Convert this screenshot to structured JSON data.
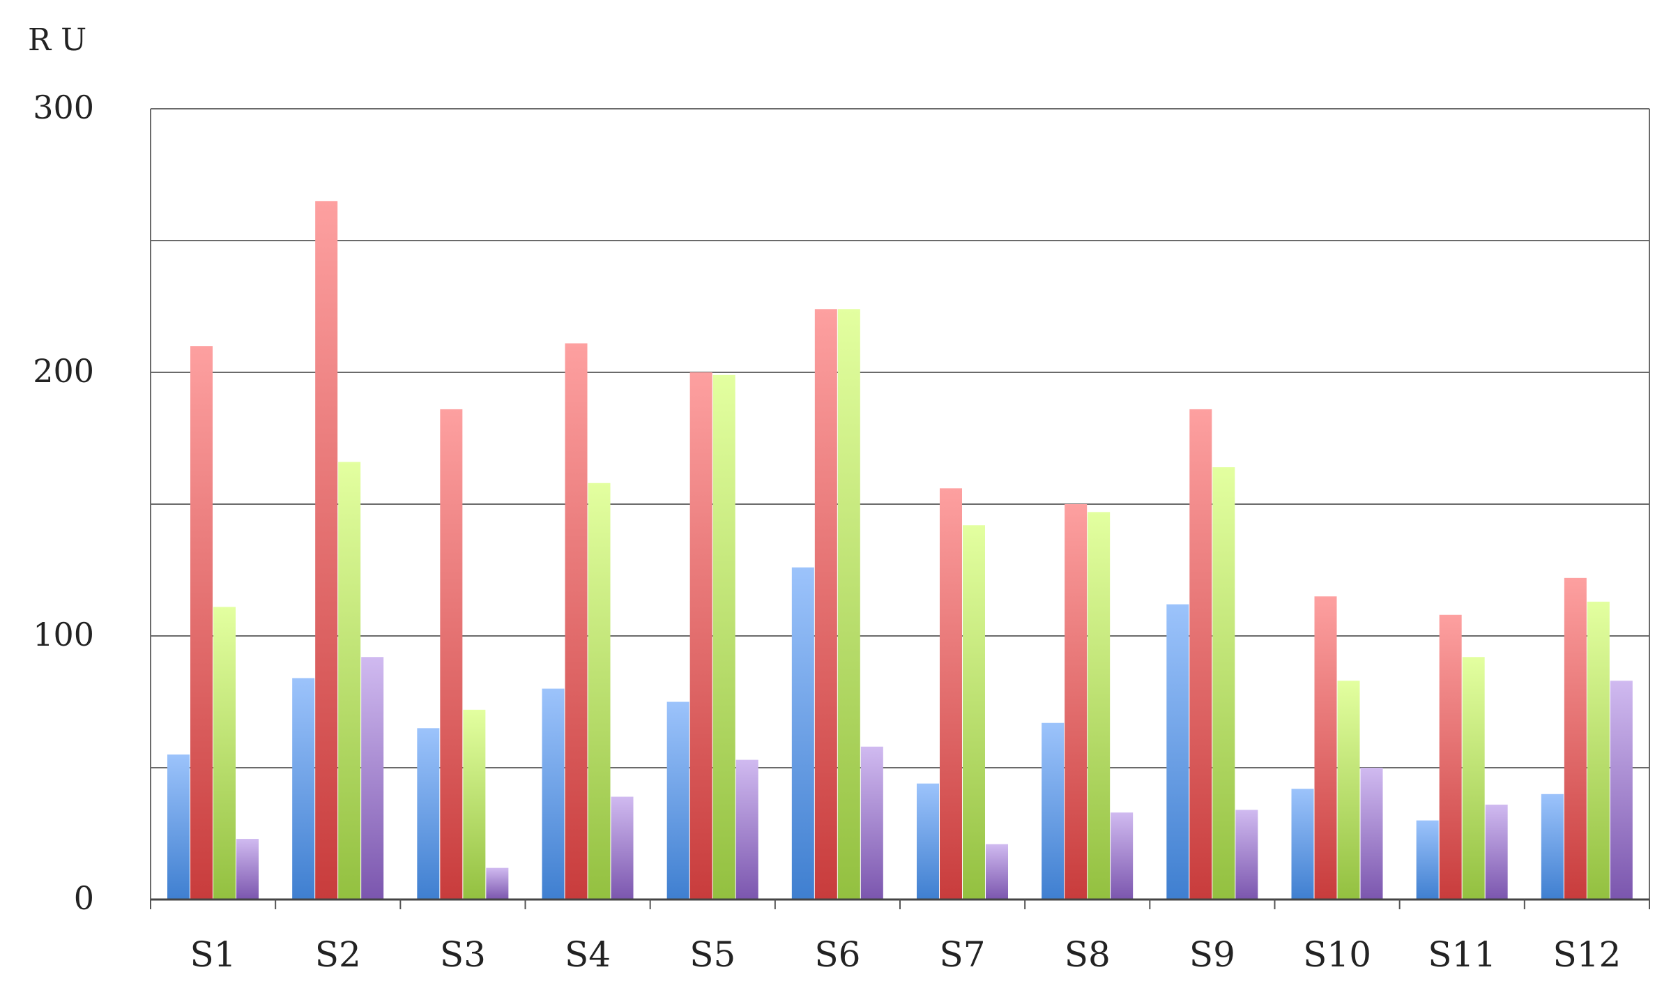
{
  "chart_data": {
    "type": "bar",
    "title": "",
    "xlabel": "",
    "ylabel": "RU",
    "ylim": [
      0,
      300
    ],
    "y_ticks": [
      0,
      50,
      100,
      150,
      200,
      250,
      300
    ],
    "y_tick_labels": [
      "0",
      "",
      "100",
      "",
      "200",
      "",
      "300"
    ],
    "grid": true,
    "legend": "none",
    "categories": [
      "S1",
      "S2",
      "S3",
      "S4",
      "S5",
      "S6",
      "S7",
      "S8",
      "S9",
      "S10",
      "S11",
      "S12"
    ],
    "series": [
      {
        "values": [
          55,
          84,
          65,
          80,
          75,
          126,
          44,
          67,
          112,
          42,
          30,
          40
        ]
      },
      {
        "values": [
          210,
          265,
          186,
          211,
          200,
          224,
          156,
          150,
          186,
          115,
          108,
          122
        ]
      },
      {
        "values": [
          111,
          166,
          72,
          158,
          199,
          224,
          142,
          147,
          164,
          83,
          92,
          113
        ]
      },
      {
        "values": [
          23,
          92,
          12,
          39,
          53,
          58,
          21,
          33,
          34,
          50,
          36,
          83
        ]
      }
    ],
    "colors": [
      {
        "light": "#9cc3fb",
        "dark": "#3f7fd0"
      },
      {
        "light": "#fda0a0",
        "dark": "#c83c3c"
      },
      {
        "light": "#e3ffa0",
        "dark": "#93c040"
      },
      {
        "light": "#d0baf0",
        "dark": "#7b56ae"
      }
    ]
  }
}
